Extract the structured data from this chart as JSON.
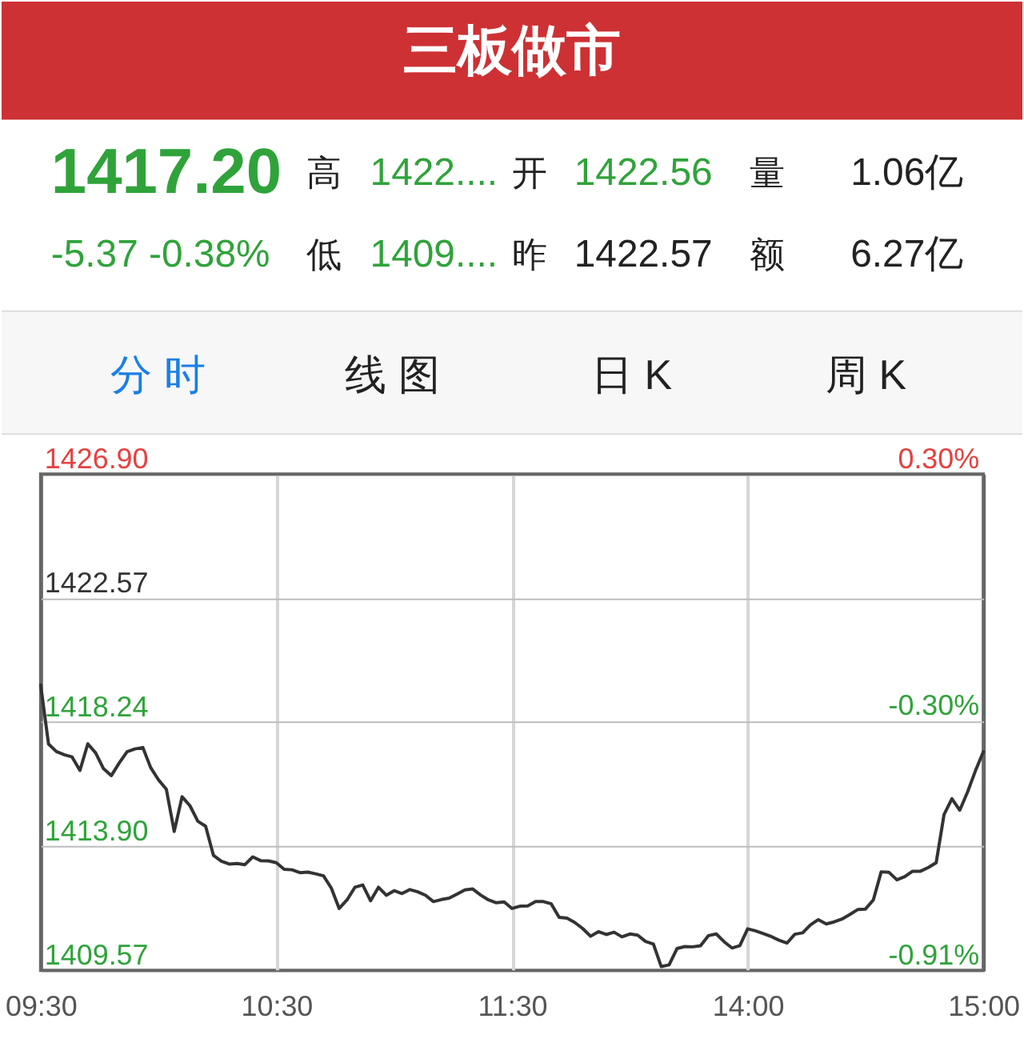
{
  "chart_data": {
    "type": "line",
    "title": "三板做市",
    "annotations": [
      "1417.20",
      "-5.37 -0.38%",
      "高",
      "1422....",
      "开",
      "1422.56",
      "量",
      "1.06亿",
      "低",
      "1409....",
      "昨",
      "1422.57",
      "额",
      "6.27亿",
      "分 时",
      "线 图",
      "日 K",
      "周 K"
    ],
    "categories": [
      "09:30",
      null,
      null,
      null,
      null,
      null,
      null,
      null,
      null,
      null,
      null,
      null,
      null,
      null,
      null,
      null,
      null,
      null,
      null,
      null,
      null,
      null,
      null,
      null,
      null,
      null,
      null,
      null,
      null,
      null,
      "10:30",
      null,
      null,
      null,
      null,
      null,
      null,
      null,
      null,
      null,
      null,
      null,
      null,
      null,
      null,
      null,
      null,
      null,
      null,
      null,
      null,
      null,
      null,
      null,
      null,
      null,
      null,
      null,
      null,
      null,
      "11:30",
      null,
      null,
      null,
      null,
      null,
      null,
      null,
      null,
      null,
      null,
      null,
      null,
      null,
      null,
      null,
      null,
      null,
      null,
      null,
      null,
      null,
      null,
      null,
      null,
      null,
      null,
      null,
      null,
      null,
      "14:00",
      null,
      null,
      null,
      null,
      null,
      null,
      null,
      null,
      null,
      null,
      null,
      null,
      null,
      null,
      null,
      null,
      null,
      null,
      null,
      null,
      null,
      null,
      null,
      null,
      null,
      null,
      null,
      null,
      null,
      "15:00"
    ],
    "values": [
      1419.53,
      1417.47,
      1417.21,
      1417.1,
      1417.02,
      1416.55,
      1417.48,
      1417.16,
      1416.61,
      1416.37,
      1416.81,
      1417.2,
      1417.3,
      1417.35,
      1416.65,
      1416.22,
      1415.89,
      1414.42,
      1415.63,
      1415.32,
      1414.78,
      1414.6,
      1413.58,
      1413.38,
      1413.28,
      1413.3,
      1413.26,
      1413.53,
      1413.4,
      1413.39,
      1413.33,
      1413.1,
      1413.08,
      1412.98,
      1413.0,
      1412.94,
      1412.87,
      1412.44,
      1411.73,
      1412.03,
      1412.47,
      1412.55,
      1412.0,
      1412.47,
      1412.19,
      1412.35,
      1412.25,
      1412.39,
      1412.31,
      1412.19,
      1411.97,
      1412.04,
      1412.09,
      1412.23,
      1412.38,
      1412.41,
      1412.2,
      1412.03,
      1411.93,
      1411.96,
      1411.73,
      1411.81,
      1411.82,
      1411.97,
      1411.97,
      1411.89,
      1411.42,
      1411.39,
      1411.24,
      1411.03,
      1410.76,
      1410.92,
      1410.82,
      1410.9,
      1410.74,
      1410.84,
      1410.8,
      1410.58,
      1410.49,
      1409.7,
      1409.76,
      1410.33,
      1410.4,
      1410.39,
      1410.43,
      1410.78,
      1410.84,
      1410.57,
      1410.35,
      1410.43,
      1411.02,
      1410.95,
      1410.85,
      1410.75,
      1410.62,
      1410.52,
      1410.83,
      1410.88,
      1411.16,
      1411.34,
      1411.19,
      1411.26,
      1411.36,
      1411.52,
      1411.69,
      1411.71,
      1412.03,
      1413.01,
      1412.99,
      1412.73,
      1412.84,
      1413.03,
      1413.03,
      1413.16,
      1413.33,
      1415.01,
      1415.56,
      1415.16,
      1415.8,
      1416.54,
      1417.2
    ],
    "color": "#333333",
    "ylim": [
      1409.57,
      1426.9
    ],
    "yticks": [
      1409.57,
      {
        "value": 1413.9,
        "label": "1413.90"
      },
      1418.24,
      1422.57,
      {
        "value": 1426.9,
        "label": "1426.90"
      }
    ],
    "y2lim": [
      -0.91,
      0.3
    ],
    "y2ticks": [
      {
        "value": -0.91,
        "label": "-0.91%"
      },
      {
        "value": -0.3,
        "label": "-0.30%"
      },
      {
        "value": 0.3,
        "label": "0.30%"
      }
    ],
    "grid": true
  }
}
